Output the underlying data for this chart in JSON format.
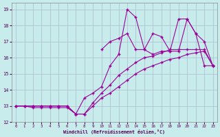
{
  "xlabel": "Windchill (Refroidissement éolien,°C)",
  "bg_color": "#c8ecec",
  "grid_color": "#aabbcc",
  "line_color": "#990099",
  "xlim": [
    -0.5,
    23.5
  ],
  "ylim": [
    12,
    19.4
  ],
  "xticks": [
    0,
    1,
    2,
    3,
    4,
    5,
    6,
    7,
    8,
    9,
    10,
    11,
    12,
    13,
    14,
    15,
    16,
    17,
    18,
    19,
    20,
    21,
    22,
    23
  ],
  "yticks": [
    12,
    13,
    14,
    15,
    16,
    17,
    18,
    19
  ],
  "lines": [
    {
      "x": [
        0,
        1,
        2,
        3,
        4,
        5,
        6,
        7,
        8,
        9,
        10,
        11,
        12,
        13,
        14,
        15,
        16,
        17,
        18,
        19,
        20,
        21,
        22,
        23
      ],
      "y": [
        13.0,
        13.0,
        12.9,
        12.9,
        12.9,
        12.9,
        12.9,
        12.5,
        13.5,
        13.8,
        14.2,
        15.5,
        16.2,
        19.0,
        18.5,
        16.5,
        16.2,
        16.4,
        16.4,
        16.4,
        18.4,
        17.5,
        17.0,
        15.5
      ]
    },
    {
      "x": [
        10,
        11,
        12,
        13,
        14,
        15,
        16,
        17,
        18,
        19,
        20,
        21,
        22,
        23
      ],
      "y": [
        16.5,
        17.0,
        17.2,
        17.5,
        16.5,
        16.5,
        17.5,
        17.3,
        16.4,
        18.4,
        18.4,
        17.5,
        15.5,
        15.5
      ]
    },
    {
      "x": [
        0,
        1,
        2,
        3,
        4,
        5,
        6,
        7,
        8,
        9,
        10,
        11,
        12,
        13,
        14,
        15,
        16,
        17,
        18,
        19,
        20,
        21,
        22,
        23
      ],
      "y": [
        13.0,
        13.0,
        13.0,
        13.0,
        13.0,
        13.0,
        13.0,
        12.5,
        12.5,
        13.2,
        13.8,
        14.3,
        14.9,
        15.3,
        15.7,
        16.0,
        16.1,
        16.3,
        16.5,
        16.5,
        16.5,
        16.5,
        16.5,
        15.5
      ]
    },
    {
      "x": [
        0,
        1,
        2,
        3,
        4,
        5,
        6,
        7,
        8,
        9,
        10,
        11,
        12,
        13,
        14,
        15,
        16,
        17,
        18,
        19,
        20,
        21,
        22,
        23
      ],
      "y": [
        13.0,
        13.0,
        13.0,
        13.0,
        13.0,
        13.0,
        13.0,
        12.5,
        12.5,
        13.0,
        13.5,
        13.8,
        14.2,
        14.6,
        15.0,
        15.3,
        15.5,
        15.7,
        15.9,
        16.0,
        16.2,
        16.3,
        16.4,
        15.5
      ]
    }
  ]
}
